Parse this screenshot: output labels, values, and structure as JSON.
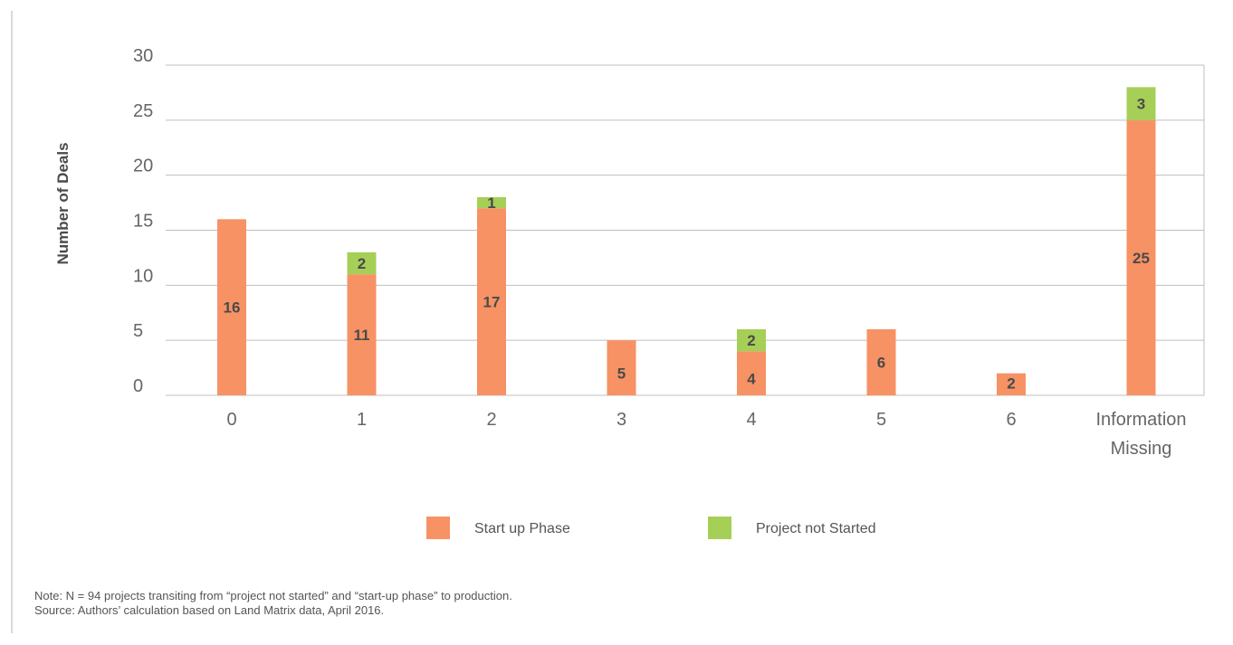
{
  "chart_data": {
    "type": "bar",
    "stacked": true,
    "ylabel": "Number of Deals",
    "xlabel": "",
    "ylim": [
      0,
      30
    ],
    "yticks": [
      0,
      5,
      10,
      15,
      20,
      25,
      30
    ],
    "grid": true,
    "legend_position": "bottom",
    "categories": [
      "0",
      "1",
      "2",
      "3",
      "4",
      "5",
      "6",
      "Information Missing"
    ],
    "series": [
      {
        "name": "Start up Phase",
        "color": "#f79265",
        "values": [
          16,
          11,
          17,
          5,
          4,
          6,
          2,
          25
        ]
      },
      {
        "name": "Project not Started",
        "color": "#a6cf57",
        "values": [
          0,
          2,
          1,
          0,
          2,
          0,
          0,
          3
        ]
      }
    ]
  },
  "notes": {
    "note": "Note: N = 94 projects transiting from “project not started” and “start-up phase” to production.",
    "source": "Source: Authors’ calculation based on Land Matrix data, April 2016."
  }
}
